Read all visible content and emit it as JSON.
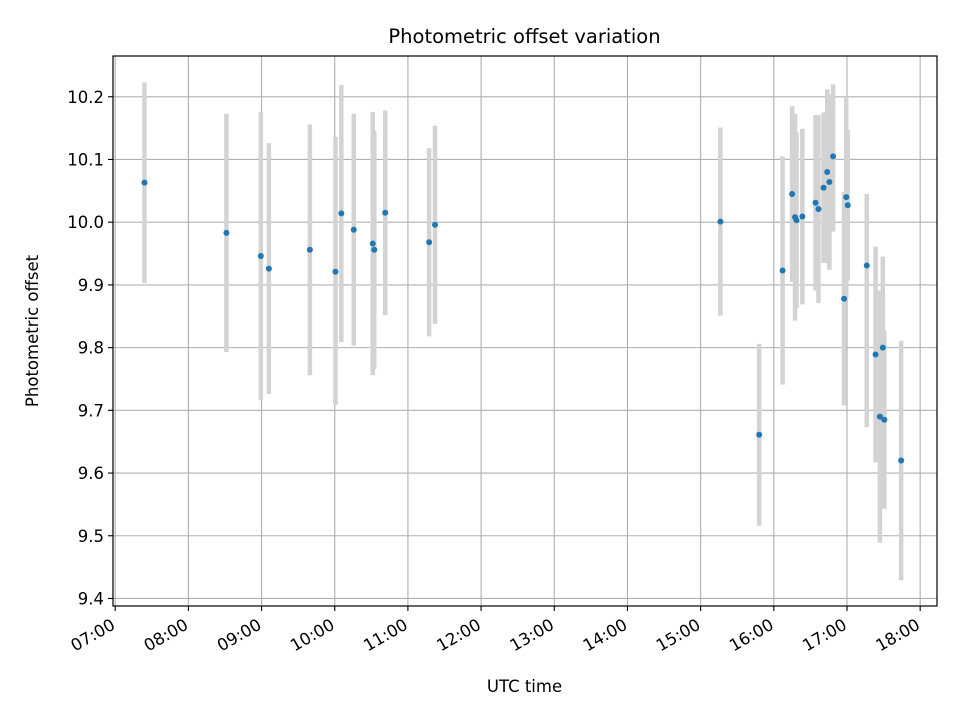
{
  "chart_data": {
    "type": "scatter",
    "title": "Photometric offset variation",
    "xlabel": "UTC time",
    "ylabel": "Photometric offset",
    "x_unit": "hours UTC",
    "xlim": [
      6.97,
      18.23
    ],
    "ylim": [
      9.388,
      10.265
    ],
    "x_ticks": [
      7,
      8,
      9,
      10,
      11,
      12,
      13,
      14,
      15,
      16,
      17,
      18
    ],
    "x_tick_labels": [
      "07:00",
      "08:00",
      "09:00",
      "10:00",
      "11:00",
      "12:00",
      "13:00",
      "14:00",
      "15:00",
      "16:00",
      "17:00",
      "18:00"
    ],
    "y_ticks": [
      9.4,
      9.5,
      9.6,
      9.7,
      9.8,
      9.9,
      10.0,
      10.1,
      10.2
    ],
    "y_tick_labels": [
      "9.4",
      "9.5",
      "9.6",
      "9.7",
      "9.8",
      "9.9",
      "10.0",
      "10.1",
      "10.2"
    ],
    "grid": true,
    "marker_color": "#1f77b4",
    "errorbar_color": "#d3d3d3",
    "points": [
      {
        "x": 7.4,
        "y": 10.063,
        "lo": 9.903,
        "hi": 10.223
      },
      {
        "x": 8.52,
        "y": 9.983,
        "lo": 9.793,
        "hi": 10.173
      },
      {
        "x": 8.99,
        "y": 9.946,
        "lo": 9.716,
        "hi": 10.176
      },
      {
        "x": 9.1,
        "y": 9.926,
        "lo": 9.726,
        "hi": 10.126
      },
      {
        "x": 9.66,
        "y": 9.956,
        "lo": 9.756,
        "hi": 10.156
      },
      {
        "x": 10.01,
        "y": 9.921,
        "lo": 9.709,
        "hi": 10.136
      },
      {
        "x": 10.09,
        "y": 10.014,
        "lo": 9.809,
        "hi": 10.219
      },
      {
        "x": 10.26,
        "y": 9.988,
        "lo": 9.803,
        "hi": 10.173
      },
      {
        "x": 10.52,
        "y": 9.966,
        "lo": 9.756,
        "hi": 10.176
      },
      {
        "x": 10.54,
        "y": 9.956,
        "lo": 9.766,
        "hi": 10.146
      },
      {
        "x": 10.69,
        "y": 10.015,
        "lo": 9.852,
        "hi": 10.178
      },
      {
        "x": 11.29,
        "y": 9.968,
        "lo": 9.818,
        "hi": 10.118
      },
      {
        "x": 11.37,
        "y": 9.996,
        "lo": 9.838,
        "hi": 10.154
      },
      {
        "x": 15.27,
        "y": 10.001,
        "lo": 9.851,
        "hi": 10.151
      },
      {
        "x": 15.8,
        "y": 9.661,
        "lo": 9.516,
        "hi": 9.806
      },
      {
        "x": 16.12,
        "y": 9.923,
        "lo": 9.741,
        "hi": 10.105
      },
      {
        "x": 16.25,
        "y": 10.045,
        "lo": 9.905,
        "hi": 10.185
      },
      {
        "x": 16.29,
        "y": 10.008,
        "lo": 9.843,
        "hi": 10.173
      },
      {
        "x": 16.31,
        "y": 10.003,
        "lo": 9.863,
        "hi": 10.143
      },
      {
        "x": 16.39,
        "y": 10.009,
        "lo": 9.869,
        "hi": 10.149
      },
      {
        "x": 16.57,
        "y": 10.031,
        "lo": 9.891,
        "hi": 10.171
      },
      {
        "x": 16.61,
        "y": 10.021,
        "lo": 9.871,
        "hi": 10.171
      },
      {
        "x": 16.68,
        "y": 10.055,
        "lo": 9.935,
        "hi": 10.175
      },
      {
        "x": 16.73,
        "y": 10.08,
        "lo": 9.935,
        "hi": 10.212
      },
      {
        "x": 16.76,
        "y": 10.064,
        "lo": 9.924,
        "hi": 10.204
      },
      {
        "x": 16.81,
        "y": 10.105,
        "lo": 9.985,
        "hi": 10.22
      },
      {
        "x": 16.96,
        "y": 9.878,
        "lo": 9.708,
        "hi": 10.048
      },
      {
        "x": 16.99,
        "y": 10.04,
        "lo": 9.88,
        "hi": 10.2
      },
      {
        "x": 17.01,
        "y": 10.027,
        "lo": 9.907,
        "hi": 10.147
      },
      {
        "x": 17.27,
        "y": 9.931,
        "lo": 9.673,
        "hi": 10.045
      },
      {
        "x": 17.39,
        "y": 9.789,
        "lo": 9.617,
        "hi": 9.961
      },
      {
        "x": 17.45,
        "y": 9.69,
        "lo": 9.489,
        "hi": 9.891
      },
      {
        "x": 17.49,
        "y": 9.8,
        "lo": 9.545,
        "hi": 9.945
      },
      {
        "x": 17.51,
        "y": 9.685,
        "lo": 9.543,
        "hi": 9.827
      },
      {
        "x": 17.74,
        "y": 9.62,
        "lo": 9.429,
        "hi": 9.811
      }
    ]
  }
}
